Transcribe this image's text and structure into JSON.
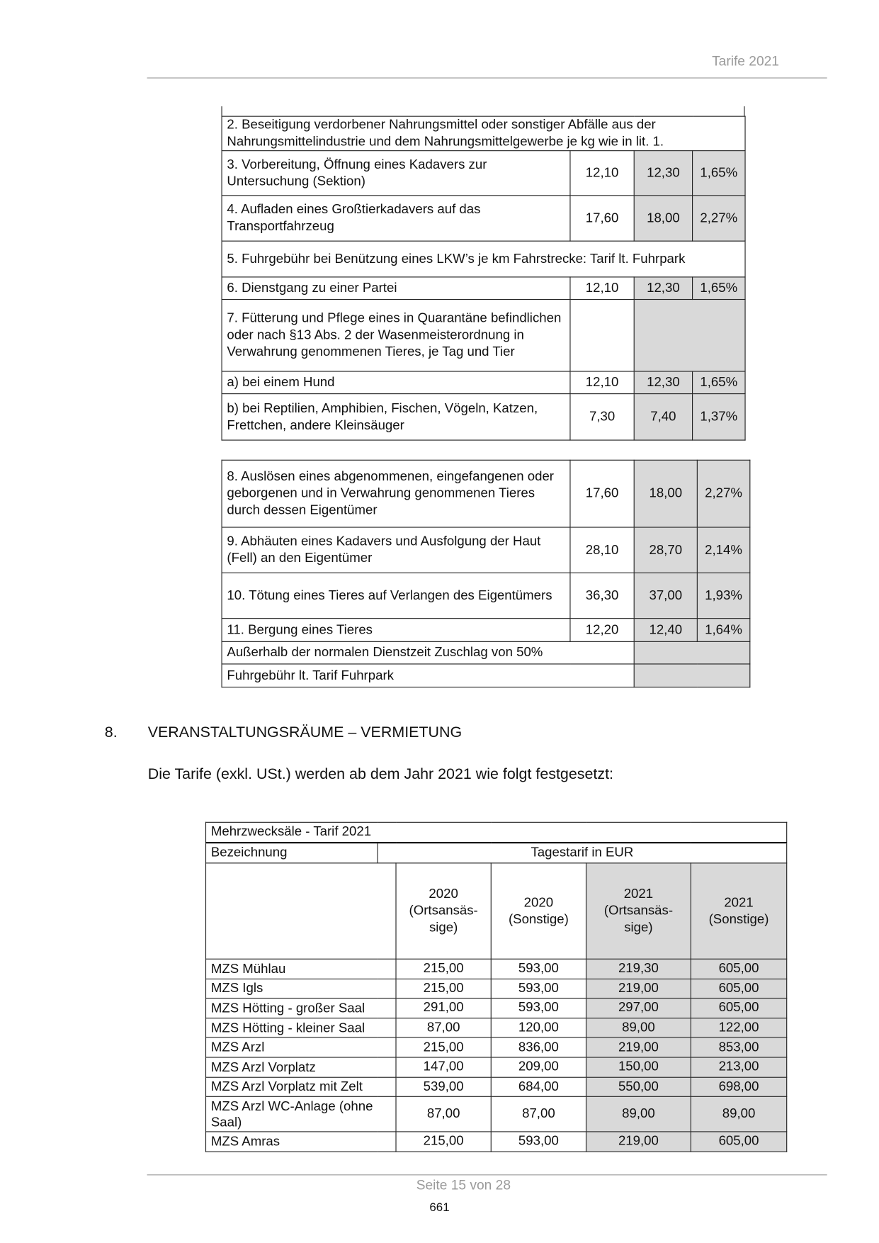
{
  "header": {
    "title": "Tarife 2021"
  },
  "table1": {
    "rows": [
      {
        "text": "2. Beseitigung verdorbener Nahrungsmittel oder sonstiger Abfälle aus der Nahrungsmittelindustrie und dem Nahrungsmittelgewerbe je kg wie in lit. 1.",
        "span": true
      },
      {
        "text": "3. Vorbereitung, Öffnung eines Kadavers zur Untersuchung (Sektion)",
        "v2020": "12,10",
        "v2021": "12,30",
        "pct": "1,65%"
      },
      {
        "text": "4. Aufladen eines Großtierkadavers auf das Transportfahrzeug",
        "v2020": "17,60",
        "v2021": "18,00",
        "pct": "2,27%"
      },
      {
        "text": "5. Fuhrgebühr bei Benützung eines LKW’s je km Fahrstrecke: Tarif lt. Fuhrpark",
        "span": true
      },
      {
        "text": "6. Dienstgang zu einer Partei",
        "v2020": "12,10",
        "v2021": "12,30",
        "pct": "1,65%"
      },
      {
        "text": "7. Fütterung und Pflege eines in Quarantäne befindlichen oder nach §13 Abs. 2 der Wasenmeisterordnung in Verwahrung genommenen Tieres, je Tag und Tier",
        "blank": true
      },
      {
        "text": "a) bei einem Hund",
        "v2020": "12,10",
        "v2021": "12,30",
        "pct": "1,65%"
      },
      {
        "text": "b) bei Reptilien, Amphibien, Fischen, Vögeln, Katzen, Frettchen, andere Kleinsäuger",
        "v2020": "7,30",
        "v2021": "7,40",
        "pct": "1,37%"
      }
    ]
  },
  "table2": {
    "rows": [
      {
        "text": "8. Auslösen eines abgenommenen, eingefangenen oder geborgenen und in Verwahrung genommenen Tieres durch dessen Eigentümer",
        "v2020": "17,60",
        "v2021": "18,00",
        "pct": "2,27%"
      },
      {
        "text": "9. Abhäuten eines Kadavers und Ausfolgung der Haut (Fell) an den Eigentümer",
        "v2020": "28,10",
        "v2021": "28,70",
        "pct": "2,14%"
      },
      {
        "text": "10. Tötung eines Tieres auf Verlangen des Eigentümers",
        "v2020": "36,30",
        "v2021": "37,00",
        "pct": "1,93%"
      },
      {
        "text": "11. Bergung eines Tieres",
        "v2020": "12,20",
        "v2021": "12,40",
        "pct": "1,64%"
      },
      {
        "text": "Außerhalb der normalen Dienstzeit Zuschlag von 50%",
        "note": true
      },
      {
        "text": "Fuhrgebühr lt. Tarif Fuhrpark",
        "note": true
      }
    ]
  },
  "section": {
    "number": "8.",
    "title": "VERANSTALTUNGSRÄUME – VERMIETUNG",
    "intro": "Die Tarife (exkl. USt.) werden ab dem Jahr 2021 wie folgt festgesetzt:"
  },
  "table3": {
    "title": "Mehrzwecksäle - Tarif 2021",
    "col_label": "Bezeichnung",
    "group_label": "Tagestarif in EUR",
    "columns": [
      "2020 (Ortsansäs-sige)",
      "2020 (Sonstige)",
      "2021 (Ortsansäs-sige)",
      "2021 (Sonstige)"
    ],
    "rows": [
      {
        "name": "MZS Mühlau",
        "values": [
          "215,00",
          "593,00",
          "219,30",
          "605,00"
        ]
      },
      {
        "name": "MZS Igls",
        "values": [
          "215,00",
          "593,00",
          "219,00",
          "605,00"
        ]
      },
      {
        "name": "MZS Hötting - großer Saal",
        "values": [
          "291,00",
          "593,00",
          "297,00",
          "605,00"
        ]
      },
      {
        "name": "MZS Hötting - kleiner Saal",
        "values": [
          "87,00",
          "120,00",
          "89,00",
          "122,00"
        ]
      },
      {
        "name": "MZS Arzl",
        "values": [
          "215,00",
          "836,00",
          "219,00",
          "853,00"
        ]
      },
      {
        "name": "MZS Arzl Vorplatz",
        "values": [
          "147,00",
          "209,00",
          "150,00",
          "213,00"
        ]
      },
      {
        "name": "MZS Arzl Vorplatz mit Zelt",
        "values": [
          "539,00",
          "684,00",
          "550,00",
          "698,00"
        ]
      },
      {
        "name": "MZS Arzl WC-Anlage (ohne Saal)",
        "values": [
          "87,00",
          "87,00",
          "89,00",
          "89,00"
        ]
      },
      {
        "name": "MZS Amras",
        "values": [
          "215,00",
          "593,00",
          "219,00",
          "605,00"
        ]
      }
    ]
  },
  "footer": {
    "page": "Seite 15 von 28",
    "number": "661"
  },
  "colors": {
    "shade": "#d9d9d9",
    "rule": "#999999"
  }
}
